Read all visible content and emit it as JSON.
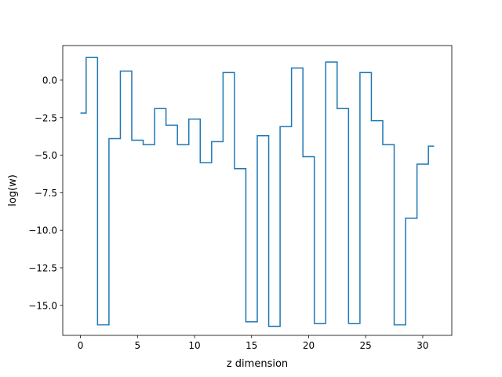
{
  "chart_data": {
    "type": "line",
    "drawstyle": "steps-mid",
    "xlabel": "z dimension",
    "ylabel": "log(w)",
    "xlim": [
      -1.55,
      32.55
    ],
    "ylim": [
      -17.0,
      2.3
    ],
    "xticks": [
      0,
      5,
      10,
      15,
      20,
      25,
      30
    ],
    "yticks": [
      0.0,
      -2.5,
      -5.0,
      -7.5,
      -10.0,
      -12.5,
      -15.0
    ],
    "ytick_labels": [
      "0.0",
      "−2.5",
      "−5.0",
      "−7.5",
      "−10.0",
      "−12.5",
      "−15.0"
    ],
    "xtick_labels": [
      "0",
      "5",
      "10",
      "15",
      "20",
      "25",
      "30"
    ],
    "grid": false,
    "line_color": "#1f77b4",
    "series": [
      {
        "x": [
          0,
          1,
          2,
          3,
          4,
          5,
          6,
          7,
          8,
          9,
          10,
          11,
          12,
          13,
          14,
          15,
          16,
          17,
          18,
          19,
          20,
          21,
          22,
          23,
          24,
          25,
          26,
          27,
          28,
          29,
          30,
          31
        ],
        "values": [
          -2.2,
          1.5,
          -16.3,
          -3.9,
          0.6,
          -4.0,
          -4.3,
          -1.9,
          -3.0,
          -4.3,
          -2.6,
          -5.5,
          -4.1,
          0.5,
          -5.9,
          -16.1,
          -3.7,
          -16.4,
          -3.1,
          0.8,
          -5.1,
          -16.2,
          1.2,
          -1.9,
          -16.2,
          0.5,
          -2.7,
          -4.3,
          -16.3,
          -9.2,
          -5.6,
          -4.4
        ]
      }
    ]
  }
}
